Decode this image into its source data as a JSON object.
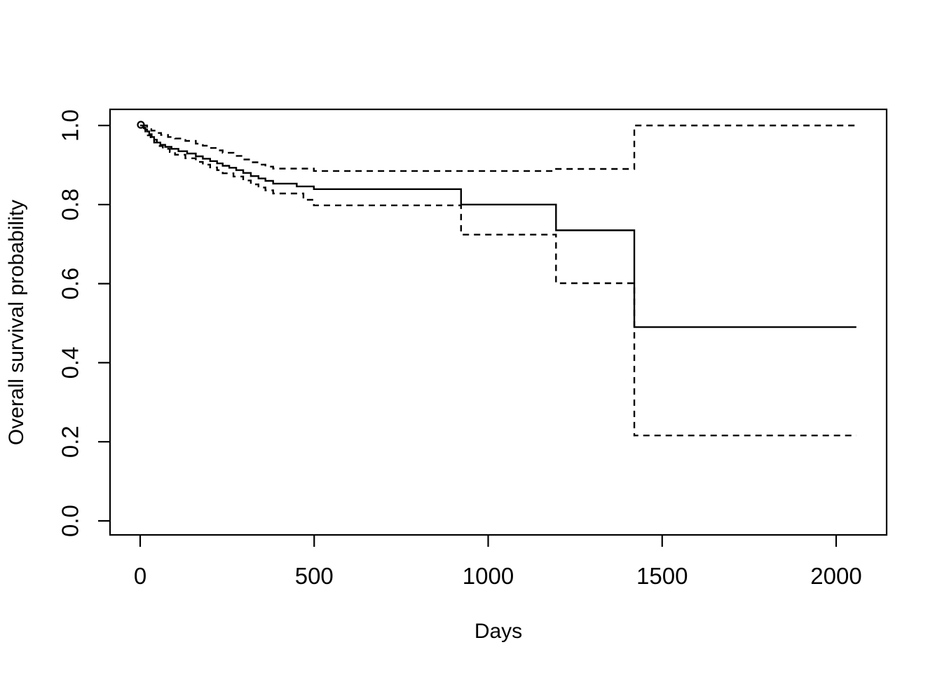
{
  "figure": {
    "background_color": "#ffffff",
    "foreground_color": "#000000"
  },
  "chart_data": {
    "type": "line",
    "subtype": "kaplan-meier-step-curve",
    "title": "",
    "xlabel": "Days",
    "ylabel": "Overall survival probability",
    "grid": false,
    "legend": null,
    "xticks": [
      0,
      500,
      1000,
      1500,
      2000
    ],
    "xtick_labels": [
      "0",
      "500",
      "1000",
      "1500",
      "2000"
    ],
    "yticks": [
      0.0,
      0.2,
      0.4,
      0.6,
      0.8,
      1.0
    ],
    "ytick_labels": [
      "0.0",
      "0.2",
      "0.4",
      "0.6",
      "0.8",
      "1.0"
    ],
    "xlim": [
      -87,
      2145
    ],
    "ylim": [
      -0.035,
      1.04
    ],
    "x_end": 2058,
    "start_marker": {
      "shape": "open-circle",
      "x": 0,
      "y": 1.0
    },
    "series": [
      {
        "name": "overall-survival-estimate",
        "line": "solid",
        "step": true,
        "points": [
          [
            0,
            1.0
          ],
          [
            8,
            0.995
          ],
          [
            14,
            0.99
          ],
          [
            20,
            0.985
          ],
          [
            26,
            0.978
          ],
          [
            33,
            0.971
          ],
          [
            40,
            0.964
          ],
          [
            48,
            0.957
          ],
          [
            58,
            0.951
          ],
          [
            72,
            0.946
          ],
          [
            90,
            0.941
          ],
          [
            110,
            0.935
          ],
          [
            135,
            0.929
          ],
          [
            160,
            0.922
          ],
          [
            180,
            0.916
          ],
          [
            201,
            0.91
          ],
          [
            221,
            0.904
          ],
          [
            237,
            0.898
          ],
          [
            256,
            0.893
          ],
          [
            276,
            0.887
          ],
          [
            296,
            0.88
          ],
          [
            318,
            0.872
          ],
          [
            340,
            0.866
          ],
          [
            360,
            0.86
          ],
          [
            382,
            0.853
          ],
          [
            450,
            0.846
          ],
          [
            499,
            0.839
          ],
          [
            922,
            0.8
          ],
          [
            1195,
            0.735
          ],
          [
            1420,
            0.49
          ]
        ]
      },
      {
        "name": "upper-95-confidence-band",
        "line": "dashed",
        "step": true,
        "points": [
          [
            8,
            1.0
          ],
          [
            20,
            0.993
          ],
          [
            32,
            0.987
          ],
          [
            45,
            0.981
          ],
          [
            60,
            0.976
          ],
          [
            80,
            0.971
          ],
          [
            100,
            0.967
          ],
          [
            130,
            0.961
          ],
          [
            160,
            0.954
          ],
          [
            180,
            0.949
          ],
          [
            201,
            0.943
          ],
          [
            221,
            0.937
          ],
          [
            237,
            0.931
          ],
          [
            268,
            0.923
          ],
          [
            296,
            0.914
          ],
          [
            318,
            0.907
          ],
          [
            340,
            0.901
          ],
          [
            360,
            0.896
          ],
          [
            382,
            0.891
          ],
          [
            499,
            0.885
          ],
          [
            1195,
            0.89
          ],
          [
            1420,
            1.0
          ]
        ]
      },
      {
        "name": "lower-95-confidence-band",
        "line": "dashed",
        "step": true,
        "points": [
          [
            8,
            0.993
          ],
          [
            15,
            0.985
          ],
          [
            22,
            0.975
          ],
          [
            30,
            0.966
          ],
          [
            40,
            0.957
          ],
          [
            52,
            0.948
          ],
          [
            65,
            0.941
          ],
          [
            85,
            0.933
          ],
          [
            100,
            0.926
          ],
          [
            130,
            0.917
          ],
          [
            160,
            0.908
          ],
          [
            180,
            0.901
          ],
          [
            201,
            0.894
          ],
          [
            221,
            0.887
          ],
          [
            237,
            0.879
          ],
          [
            268,
            0.871
          ],
          [
            296,
            0.861
          ],
          [
            318,
            0.851
          ],
          [
            340,
            0.843
          ],
          [
            360,
            0.836
          ],
          [
            382,
            0.828
          ],
          [
            469,
            0.812
          ],
          [
            499,
            0.798
          ],
          [
            922,
            0.724
          ],
          [
            1195,
            0.601
          ],
          [
            1420,
            0.216
          ]
        ]
      }
    ]
  }
}
